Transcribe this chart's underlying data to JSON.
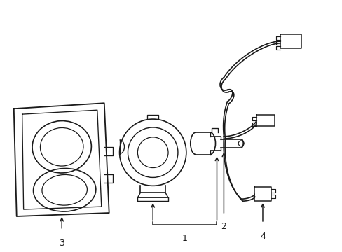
{
  "background_color": "#ffffff",
  "line_color": "#1a1a1a",
  "line_width": 1.2,
  "figsize": [
    4.89,
    3.6
  ],
  "dpi": 100
}
